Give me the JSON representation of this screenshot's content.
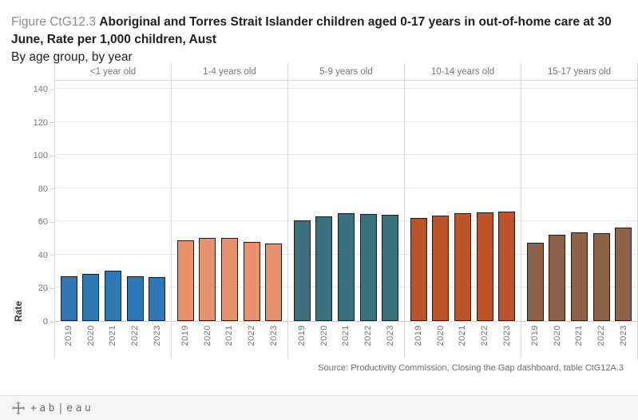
{
  "title": {
    "prefix": "Figure CtG12.3",
    "main": "Aboriginal and Torres Strait Islander children aged 0-17 years in out-of-home care at 30 June, Rate per 1,000 children, Aust",
    "subtitle": "By age group, by year"
  },
  "chart_data": {
    "type": "bar",
    "title": "Figure CtG12.3 Aboriginal and Torres Strait Islander children aged 0-17 years in out-of-home care at 30 June, Rate per 1,000 children, Aust",
    "subtitle": "By age group, by year",
    "ylabel": "Rate",
    "ylim": [
      0,
      145
    ],
    "yticks": [
      0,
      20,
      40,
      60,
      80,
      100,
      120,
      140
    ],
    "grid": "horizontal",
    "categories": [
      "2019",
      "2020",
      "2021",
      "2022",
      "2023"
    ],
    "panels": [
      {
        "label": "<1 year old",
        "color": "#2E79B5",
        "values": [
          27,
          28.5,
          30.5,
          27,
          26.5
        ]
      },
      {
        "label": "1-4 years old",
        "color": "#E7946E",
        "values": [
          48.5,
          50,
          50,
          47.5,
          46.5
        ]
      },
      {
        "label": "5-9 years old",
        "color": "#3B707E",
        "values": [
          60.5,
          63,
          65,
          64.5,
          64
        ]
      },
      {
        "label": "10-14 years old",
        "color": "#BD5328",
        "values": [
          62,
          63.5,
          65,
          65.5,
          66
        ]
      },
      {
        "label": "15-17 years old",
        "color": "#8C6249",
        "values": [
          47,
          52,
          53.5,
          53,
          56.5
        ]
      }
    ],
    "source": "Source: Productivity Commission, Closing the Gap dashboard, table CtG12A.3"
  },
  "footer": {
    "wordmark": "+ab|eau"
  }
}
